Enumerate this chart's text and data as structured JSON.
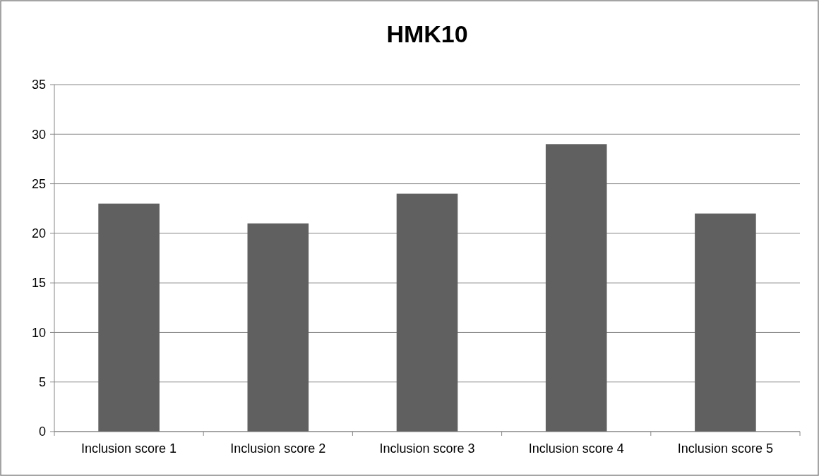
{
  "chart_data": {
    "type": "bar",
    "title": "HMK10",
    "categories": [
      "Inclusion score 1",
      "Inclusion score 2",
      "Inclusion score 3",
      "Inclusion score 4",
      "Inclusion score 5"
    ],
    "values": [
      23,
      21,
      24,
      29,
      22
    ],
    "color": "#606060",
    "ylim": [
      0,
      35
    ],
    "yticks": [
      0,
      5,
      10,
      15,
      20,
      25,
      30,
      35
    ],
    "grid": "y"
  }
}
